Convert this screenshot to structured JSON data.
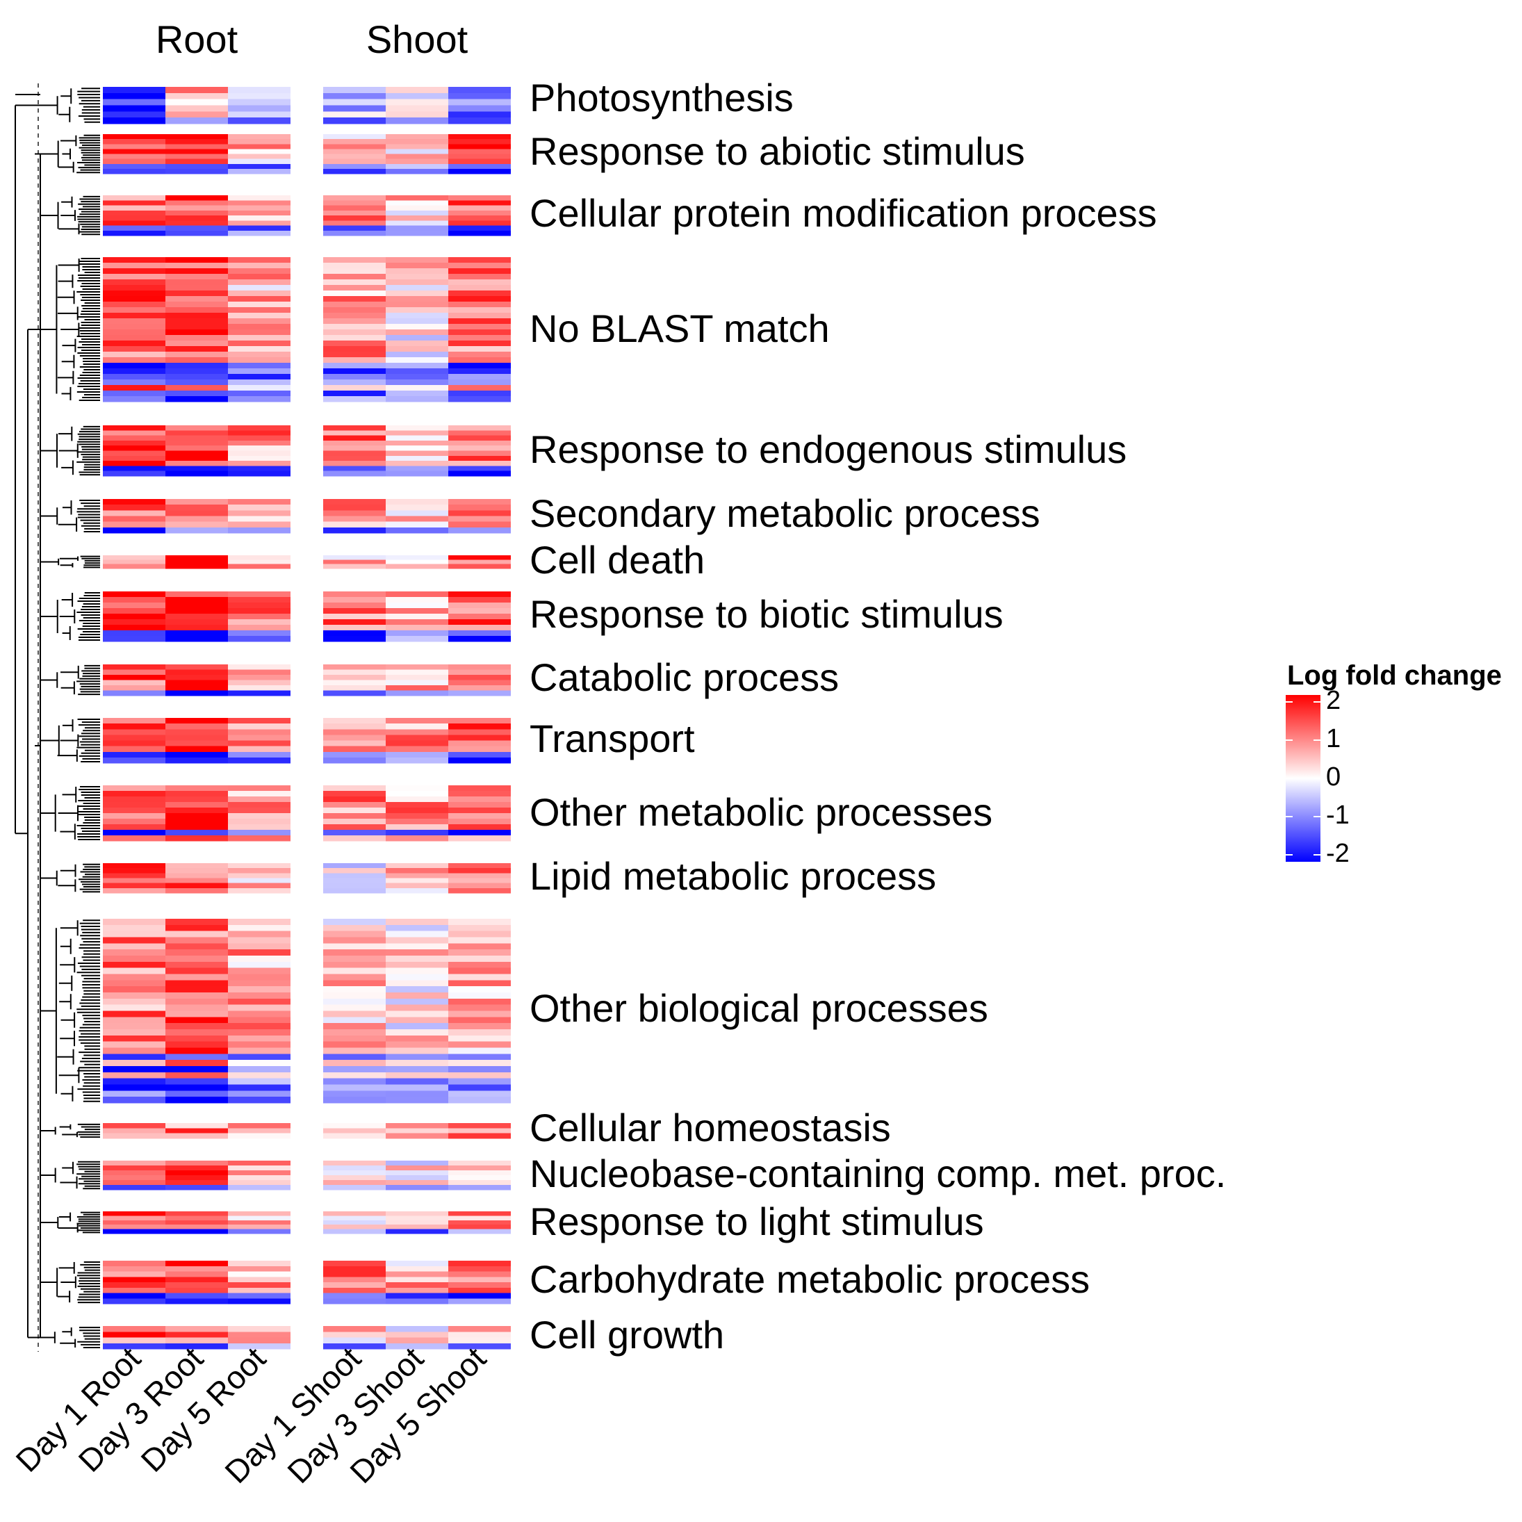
{
  "chart_data": {
    "type": "heatmap",
    "title": "",
    "column_groups": [
      "Root",
      "Shoot"
    ],
    "columns": [
      "Day 1 Root",
      "Day 3 Root",
      "Day 5 Root",
      "Day 1 Shoot",
      "Day 3 Shoot",
      "Day 5 Shoot"
    ],
    "legend": {
      "title": "Log fold change",
      "ticks": [
        "2",
        "1",
        "0",
        "-1",
        "-2"
      ],
      "range": [
        -2,
        2
      ],
      "colors": {
        "low": "#0000ff",
        "mid": "#ffffff",
        "high": "#ff0000"
      },
      "placement": "right"
    },
    "row_groups": [
      {
        "label": "Photosynthesis",
        "n": 6,
        "means": [
          -1.8,
          0.6,
          -0.4,
          -0.5,
          0.1,
          -1.2
        ]
      },
      {
        "label": "Response to abiotic stimulus",
        "n": 8,
        "means": [
          1.5,
          1.3,
          0.6,
          0.5,
          0.5,
          1.4
        ]
      },
      {
        "label": "Cellular protein modification process",
        "n": 8,
        "means": [
          1.2,
          1.4,
          0.7,
          1.0,
          0.4,
          1.1
        ]
      },
      {
        "label": "No BLAST match",
        "n": 26,
        "means": [
          1.2,
          1.5,
          0.6,
          0.8,
          0.2,
          1.1
        ]
      },
      {
        "label": "Response to endogenous stimulus",
        "n": 10,
        "means": [
          1.5,
          1.7,
          0.9,
          1.0,
          0.3,
          1.2
        ]
      },
      {
        "label": "Secondary metabolic process",
        "n": 6,
        "means": [
          1.2,
          1.0,
          0.6,
          1.0,
          0.2,
          1.0
        ]
      },
      {
        "label": "Cell death",
        "n": 3,
        "means": [
          1.2,
          1.5,
          0.5,
          0.6,
          0.2,
          1.4
        ]
      },
      {
        "label": "Response to biotic stimulus",
        "n": 9,
        "means": [
          1.7,
          1.8,
          1.0,
          1.1,
          0.6,
          1.3
        ]
      },
      {
        "label": "Catabolic process",
        "n": 6,
        "means": [
          1.3,
          1.6,
          0.6,
          0.7,
          0.5,
          0.9
        ]
      },
      {
        "label": "Transport",
        "n": 8,
        "means": [
          1.2,
          1.5,
          0.7,
          0.7,
          0.8,
          1.4
        ]
      },
      {
        "label": "Other metabolic processes",
        "n": 10,
        "means": [
          1.5,
          1.7,
          0.8,
          1.0,
          0.8,
          1.1
        ]
      },
      {
        "label": "Lipid metabolic process",
        "n": 6,
        "means": [
          1.2,
          1.1,
          0.6,
          -0.3,
          0.6,
          1.0
        ]
      },
      {
        "label": "Other biological processes",
        "n": 30,
        "means": [
          1.0,
          1.2,
          0.7,
          0.4,
          0.2,
          0.6
        ]
      },
      {
        "label": "Cellular homeostasis",
        "n": 3,
        "means": [
          0.9,
          1.0,
          0.7,
          0.5,
          0.3,
          0.9
        ]
      },
      {
        "label": "Nucleobase-containing comp. met. proc.",
        "n": 6,
        "means": [
          1.2,
          1.4,
          0.6,
          0.5,
          0.1,
          0.6
        ]
      },
      {
        "label": "Response to light stimulus",
        "n": 5,
        "means": [
          1.4,
          1.1,
          0.5,
          0.3,
          0.5,
          0.7
        ]
      },
      {
        "label": "Carbohydrate metabolic process",
        "n": 8,
        "means": [
          1.2,
          1.5,
          0.8,
          0.9,
          0.6,
          1.1
        ]
      },
      {
        "label": "Cell growth",
        "n": 4,
        "means": [
          1.2,
          1.0,
          0.5,
          0.4,
          0.1,
          0.7
        ]
      }
    ]
  }
}
